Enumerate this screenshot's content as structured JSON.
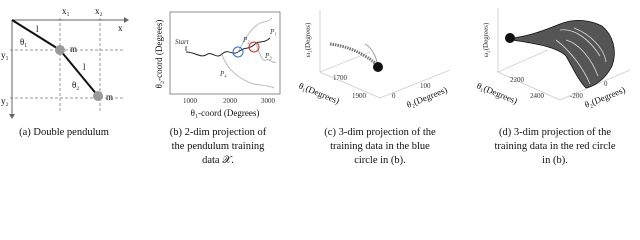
{
  "panels": [
    {
      "caption": [
        "(a) Double pendulum"
      ],
      "labels": {
        "x": "x",
        "x1": "x₁",
        "x2": "x₂",
        "y1": "y₁",
        "y2": "y₂",
        "theta1": "θ₁",
        "theta2": "θ₂",
        "l1": "l",
        "l2": "l",
        "m1": "m",
        "m2": "m"
      }
    },
    {
      "caption": [
        "(b) 2-dim projection of",
        "the pendulum training",
        "data 𝒳."
      ],
      "x_label": "θ₁-coord (Degrees)",
      "y_label": "θ₂-coord (Degrees)",
      "x_ticks": [
        "1000",
        "2000",
        "3000"
      ],
      "annotations": [
        "Start",
        "P₁",
        "P₂",
        "P₃",
        "P₄"
      ]
    },
    {
      "caption": [
        "(c) 3-dim projection of the",
        "training data in the blue",
        "circle in (b)."
      ],
      "z_label": "ω₂(Degrees)",
      "x_label": "θ₁(Degrees)",
      "y_label": "θ₂(Degrees)",
      "x_ticks": [
        "1700",
        "1900"
      ],
      "y_ticks": [
        "0",
        "100"
      ]
    },
    {
      "caption": [
        "(d) 3-dim projection of the",
        "training data in the red circle",
        "in (b)."
      ],
      "z_label": "ω₂(Degrees)",
      "x_label": "θ₁(Degrees)",
      "y_label": "θ₂(Degrees)",
      "x_ticks": [
        "2200",
        "2400"
      ],
      "y_ticks": [
        "-200",
        "0"
      ]
    }
  ]
}
